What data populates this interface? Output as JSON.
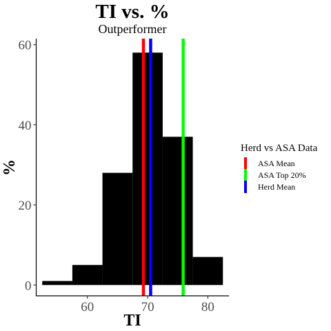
{
  "chart_data": {
    "type": "bar",
    "title": "TI  vs.  %",
    "subtitle": "Outperformer",
    "xlabel": "TI",
    "ylabel": "%",
    "xlim": [
      51.5,
      83.5
    ],
    "ylim": [
      -2.7,
      61.5
    ],
    "x_ticks": [
      60,
      70,
      80
    ],
    "x_tick_labels": [
      "60",
      "70",
      "80"
    ],
    "y_ticks": [
      0,
      20,
      40,
      60
    ],
    "y_tick_labels": [
      "0",
      "20",
      "40",
      "60"
    ],
    "bins": [
      {
        "start": 52.5,
        "end": 57.5,
        "value": 1
      },
      {
        "start": 57.5,
        "end": 62.5,
        "value": 5
      },
      {
        "start": 62.5,
        "end": 67.5,
        "value": 28
      },
      {
        "start": 67.5,
        "end": 72.5,
        "value": 58
      },
      {
        "start": 72.5,
        "end": 77.5,
        "value": 37
      },
      {
        "start": 77.5,
        "end": 82.5,
        "value": 7
      }
    ],
    "bar_color": "#000000",
    "grid": false,
    "vlines": [
      {
        "name": "ASA Mean",
        "x": 69.3,
        "color": "#ff0000"
      },
      {
        "name": "ASA Top 20%",
        "x": 75.9,
        "color": "#00ff00"
      },
      {
        "name": "Herd Mean",
        "x": 70.5,
        "color": "#0000ff"
      }
    ],
    "legend": {
      "title": "Herd vs ASA Data",
      "position": "right",
      "entries": [
        {
          "label": "ASA Mean",
          "color": "#ff0000"
        },
        {
          "label": "ASA Top 20%",
          "color": "#00ff00"
        },
        {
          "label": "Herd Mean",
          "color": "#0000ff"
        }
      ]
    }
  }
}
